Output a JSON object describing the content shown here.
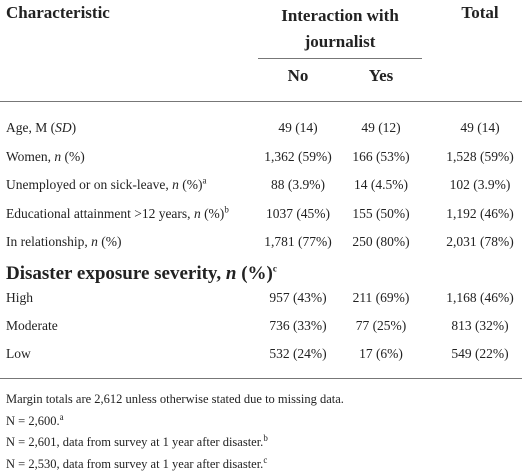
{
  "header": {
    "characteristic": "Characteristic",
    "group": "Interaction with journalist",
    "total": "Total",
    "no": "No",
    "yes": "Yes"
  },
  "rows": [
    {
      "label": {
        "pre": "Age, M (",
        "em": "SD",
        "post": ")"
      },
      "values": [
        "49 (14)",
        "49 (12)",
        "49 (14)"
      ]
    },
    {
      "label": {
        "pre": "Women, ",
        "em": "n",
        "post": " (%)"
      },
      "values": [
        "1,362 (59%)",
        "166 (53%)",
        "1,528 (59%)"
      ]
    },
    {
      "label": {
        "pre": "Unemployed or on sick-leave, ",
        "em": "n",
        "post": " (%)",
        "note": "a"
      },
      "values": [
        "88 (3.9%)",
        "14 (4.5%)",
        "102 (3.9%)"
      ]
    },
    {
      "label": {
        "pre": "Educational attainment >12 years, ",
        "em": "n",
        "post": " (%)",
        "note": "b"
      },
      "values": [
        "1037 (45%)",
        "155 (50%)",
        "1,192 (46%)"
      ]
    },
    {
      "label": {
        "pre": "In relationship, ",
        "em": "n",
        "post": " (%)"
      },
      "values": [
        "1,781 (77%)",
        "250 (80%)",
        "2,031 (78%)"
      ]
    }
  ],
  "section": {
    "label": {
      "pre": "Disaster exposure severity, ",
      "em": "n",
      "post": " (%)",
      "note": "c"
    },
    "rows": [
      {
        "label": {
          "pre": "High"
        },
        "values": [
          "957 (43%)",
          "211 (69%)",
          "1,168 (46%)"
        ]
      },
      {
        "label": {
          "pre": "Moderate"
        },
        "values": [
          "736 (33%)",
          "77 (25%)",
          "813 (32%)"
        ]
      },
      {
        "label": {
          "pre": "Low"
        },
        "values": [
          "532 (24%)",
          "17 (6%)",
          "549 (22%)"
        ]
      }
    ]
  },
  "footnotes": [
    {
      "pre": "Margin totals are 2,612 unless otherwise stated due to missing data."
    },
    {
      "note": "a",
      "pre": "N = 2,600."
    },
    {
      "note": "b",
      "pre": "N = 2,601, data from survey at 1 year after disaster."
    },
    {
      "note": "c",
      "pre": "N = 2,530, data from survey at 1 year after disaster."
    }
  ]
}
